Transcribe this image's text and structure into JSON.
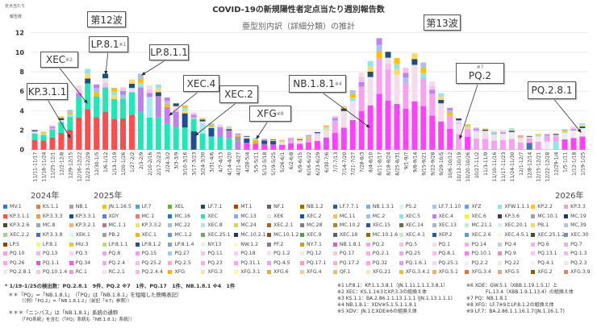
{
  "title": "COVID-19の新規陽性者定点当たり週別報告数",
  "subtitle": "亜型別内訳（詳細分類）の推計",
  "ylabel_line1": "定点当たり",
  "ylabel_line2": "報告数",
  "wave_labels": [
    "第12波",
    "第13波"
  ],
  "annotations": [
    {
      "label": "LP.8.1",
      "note": "※1"
    },
    {
      "label": "XEC",
      "note": "※2"
    },
    {
      "label": "KP.3.1.1",
      "note": ""
    },
    {
      "label": "LP.8.1.1",
      "note": ""
    },
    {
      "label": "XEC.4",
      "note": ""
    },
    {
      "label": "XEC.2",
      "note": ""
    },
    {
      "label": "XFG",
      "note": "※8"
    },
    {
      "label": "NB.1.8.1",
      "note": "※4"
    },
    {
      "label": "PQ.2",
      "note": "※7"
    },
    {
      "label": "PQ.2.8.1",
      "note": ""
    }
  ],
  "years": [
    "2024年",
    "2025年",
    "2026年"
  ],
  "chart_data": {
    "type": "bar",
    "stacked": true,
    "title": "COVID-19の新規陽性者定点当たり週別報告数",
    "subtitle": "亜型別内訳（詳細分類）の推計",
    "ylabel": "定点当たり報告数",
    "ylim": [
      0,
      12
    ],
    "yticks": [
      0,
      2,
      4,
      6,
      8,
      10,
      12
    ],
    "grid": true,
    "legend_placement": "bottom",
    "categories": [
      "11/11-11/17",
      "11/18-11/24",
      "11/25-12/1",
      "12/2-12/8",
      "12/9-12/15",
      "12/16-12/22",
      "12/23-12/29",
      "12/30-1/5",
      "1/6-1/12",
      "1/13-1/19",
      "1/20-1/26",
      "1/27-2/2",
      "2/3-2/9",
      "2/10-2/16",
      "2/17-2/23",
      "2/24-3/2",
      "3/3-3/9",
      "3/10-3/16",
      "3/17-3/23",
      "3/24-3/30",
      "3/31-4/6",
      "4/7-4/13",
      "4/14-4/20",
      "4/21-4/27",
      "4/28-5/4",
      "5/5-5/11",
      "5/12-5/18",
      "5/19-5/25",
      "5/26-6/1",
      "6/2-6/8",
      "6/9-6/15",
      "6/16-6/22",
      "6/23-6/29",
      "6/30-7/6",
      "7/7-7/13",
      "7/14-7/20",
      "7/21-7/27",
      "7/28-8/3",
      "8/4-8/10",
      "8/11-8/17",
      "8/18-8/24",
      "8/25-8/31",
      "9/1-9/7",
      "9/8-9/14",
      "9/15-9/21",
      "9/22-9/28",
      "9/29-10/5",
      "10/6-10/12",
      "10/13-10/19",
      "10/20-10/26",
      "10/27-11/2",
      "11/3-11/9",
      "11/10-11/16",
      "11/17-11/23",
      "11/24-11/30",
      "12/1-12/7",
      "12/8-12/14",
      "12/15-12/21",
      "12/22-12/28",
      "12/29-1/4",
      "1/5-1/11",
      "1/12-1/18",
      "1/19-1/25"
    ],
    "totals": [
      2.0,
      1.85,
      2.5,
      3.45,
      4.1,
      6.6,
      8.3,
      6.7,
      7.8,
      6.35,
      6.4,
      7.2,
      7.8,
      6.6,
      6.7,
      5.35,
      4.75,
      4.55,
      3.8,
      3.3,
      2.7,
      2.6,
      2.4,
      1.65,
      1.4,
      1.2,
      1.15,
      1.1,
      1.0,
      1.3,
      1.2,
      1.5,
      1.8,
      2.5,
      3.45,
      4.5,
      6.1,
      7.9,
      9.1,
      11.45,
      10.05,
      9.4,
      8.4,
      9.9,
      8.95,
      7.0,
      5.8,
      4.3,
      3.2,
      2.6,
      2.3,
      2.2,
      1.85,
      2.0,
      2.2,
      1.45,
      1.4,
      1.6,
      1.65,
      1.7,
      2.1,
      2.4,
      2.7
    ],
    "main_lineages": [
      [
        "KP.3.1.1",
        "XEC"
      ],
      [
        "KP.3.1.1",
        "XEC"
      ],
      [
        "KP.3.1.1",
        "XEC"
      ],
      [
        "KP.3.1.1",
        "XEC"
      ],
      [
        "KP.3.1.1",
        "XEC"
      ],
      [
        "KP.3.1.1",
        "XEC"
      ],
      [
        "KP.3.1.1",
        "XEC"
      ],
      [
        "KP.3.1.1",
        "XEC"
      ],
      [
        "KP.3.1.1",
        "XEC"
      ],
      [
        "KP.3.1.1",
        "XEC"
      ],
      [
        "KP.3.1.1",
        "XEC"
      ],
      [
        "KP.3.1.1",
        "XEC"
      ],
      [
        "XEC",
        "XEC.4"
      ],
      [
        "XEC",
        "XEC.8"
      ],
      [
        "XEC",
        "XEC.4"
      ],
      [
        "XEC",
        "XEC.4"
      ],
      [
        "XEC",
        "XEC.4"
      ],
      [
        "XEC",
        "XEC.2"
      ],
      [
        "XEC.2",
        "XEC"
      ],
      [
        "XEC",
        "XEC.8"
      ],
      [
        "XEC",
        "XEC.2"
      ],
      [
        "XEC",
        "XEC.4"
      ],
      [
        "XEC",
        "XEC.4"
      ],
      [
        "XEC.4",
        "MC.10.1"
      ],
      [
        "NB.1.8.1",
        "XEC.2"
      ],
      [
        "NB.1.8.1",
        "XFG"
      ],
      [
        "NB.1.8.1",
        "XEC.2"
      ],
      [
        "NB.1.8.1",
        "XEC.2"
      ],
      [
        "NB.1.8.1",
        "PQ.1"
      ],
      [
        "NB.1.8.1",
        "PQ.2"
      ],
      [
        "NB.1.8.1",
        "PQ.1"
      ],
      [
        "NB.1.8.1",
        "PQ.2"
      ],
      [
        "NB.1.8.1",
        "PQ.1"
      ],
      [
        "NB.1.8.1",
        "PQ.1"
      ],
      [
        "NB.1.8.1",
        "PQ.2"
      ],
      [
        "NB.1.8.1",
        "PQ.1"
      ],
      [
        "NB.1.8.1",
        "PQ.1.2"
      ],
      [
        "NB.1.8.1",
        "PQ.2"
      ],
      [
        "NB.1.8.1",
        "PQ.1"
      ],
      [
        "NB.1.8.1",
        "PQ.2"
      ],
      [
        "NB.1.8.1",
        "PQ.2"
      ],
      [
        "NB.1.8.1",
        "PQ.1"
      ],
      [
        "NB.1.8.1",
        "PQ.2"
      ],
      [
        "NB.1.8.1",
        "PQ.1"
      ],
      [
        "NB.1.8.1",
        "PQ.2"
      ],
      [
        "NB.1.8.1",
        "PQ.2"
      ],
      [
        "NB.1.8.1",
        "PQ.1"
      ],
      [
        "NB.1.8.1",
        "PQ.2"
      ],
      [
        "PQ.2",
        "PQ.1.2"
      ],
      [
        "NB.1.8.1",
        "PQ.2"
      ],
      [
        "PQ.2",
        "PQ.1.2"
      ],
      [
        "PQ.2",
        "PQ.1"
      ],
      [
        "PQ.2",
        "PQ.1.2"
      ],
      [
        "PQ.2",
        "PQ.2.8.1"
      ],
      [
        "PQ.2",
        "PQ.2.8.1"
      ],
      [
        "PQ.2",
        "PQ.1.2"
      ],
      [
        "MV.1",
        "PQ.2"
      ],
      [
        "PQ.2",
        "PQ.2.8.1"
      ],
      [
        "PQ.2.8.1",
        "PQ.2"
      ],
      [
        "XFW.1.1.1",
        "PQ.2"
      ],
      [
        "NB.1.8.1",
        "PQ.2.8.1"
      ],
      [
        "NB.1.8.1",
        "PQ.2.8.1"
      ],
      [
        "NB.1.8.1",
        "PQ.2.8.1"
      ]
    ]
  },
  "legend": [
    [
      "MV.1",
      "#4472c4"
    ],
    [
      "KS.1.1",
      "#ed7d31"
    ],
    [
      "NB.1",
      "#a5a5a5"
    ],
    [
      "JN.1.16.5",
      "#ffc000"
    ],
    [
      "LF.7",
      "#5b9bd5"
    ],
    [
      "XEL",
      "#70ad47"
    ],
    [
      "LF.7.1",
      "#264478"
    ],
    [
      "MT.1",
      "#9e480e"
    ],
    [
      "NF.1",
      "#636363"
    ],
    [
      "NB.1.2",
      "#997300"
    ],
    [
      "LF.7.7.1",
      "#255e91"
    ],
    [
      "NB.1.3.1",
      "#7fb0e0"
    ],
    [
      "PS.2",
      "#d9f2f2"
    ],
    [
      "LF.7.1.10",
      "#a9c4eb"
    ],
    [
      "XFZ",
      "#6f9fe0"
    ],
    [
      "XFW.1.1.1",
      "#8ee8e8"
    ],
    [
      "KP.2.2",
      "#ffc040"
    ],
    [
      "KP.3.3",
      "#f4a0c8"
    ],
    [
      "KP.3.1.1",
      "#ff4d4d"
    ],
    [
      "KP.3.3.3",
      "#f79646"
    ],
    [
      "KP.3.3.1",
      "#1f4e79"
    ],
    [
      "XDY",
      "#5b7fd0"
    ],
    [
      "MC.1",
      "#e08080"
    ],
    [
      "MC.16",
      "#2e75b6"
    ],
    [
      "XEC",
      "#1de9b6"
    ],
    [
      "MC.13",
      "#8faadc"
    ],
    [
      "XEK",
      "#e8e8e8"
    ],
    [
      "XEC.2",
      "#1f4e99"
    ],
    [
      "MC.11",
      "#f4c84c"
    ],
    [
      "MC.2",
      "#9dc3e6"
    ],
    [
      "XEC.5",
      "#7fe8f0"
    ],
    [
      "XEC.4",
      "#c080f0"
    ],
    [
      "XEC.6",
      "#f0f040"
    ],
    [
      "KP.3.6",
      "#404040"
    ],
    [
      "MC.10.1",
      "#a0a0a0"
    ],
    [
      "MC.19",
      "#1f3864"
    ],
    [
      "KP.3.2.6",
      "#375623"
    ],
    [
      "MC.8",
      "#8fa8dc"
    ],
    [
      "KP.3.2.1",
      "#f8b080"
    ],
    [
      "MC.1.1",
      "#c07080"
    ],
    [
      "KP.3.3.2",
      "#ffd966"
    ],
    [
      "MC.22",
      "#a0c0e8"
    ],
    [
      "XEC.8",
      "#a8e8f0"
    ],
    [
      "MC.24",
      "#e0d060"
    ],
    [
      "XEC.2.1",
      "#c55a11"
    ],
    [
      "MC.28",
      "#808080"
    ],
    [
      "MC.10.2",
      "#b8860b"
    ],
    [
      "XEC.15",
      "#2f5597"
    ],
    [
      "XEC.14",
      "#548235"
    ],
    [
      "XEC.13",
      "#a0b8e0"
    ],
    [
      "MC.21.1",
      "#c0f0d0"
    ],
    [
      "XEC.20.1",
      "#d0f0f8"
    ],
    [
      "PB.1",
      "#ffd070"
    ],
    [
      "MC.39",
      "#a8c8e8"
    ],
    [
      "XEC.2.2",
      "#a9d18e"
    ],
    [
      "KP.3.3.8",
      "#4472c4"
    ],
    [
      "XEK.1",
      "#ddf8f0"
    ],
    [
      "PB.2",
      "#a0a0a0"
    ],
    [
      "XEC.1",
      "#ffb000"
    ],
    [
      "MC.1.2",
      "#5b9bd5"
    ],
    [
      "XEC.25.1",
      "#70ad47"
    ],
    [
      "MC.10.2.1",
      "#203864"
    ],
    [
      "MC.10.1.2",
      "#9e480e"
    ],
    [
      "XEC.9",
      "#5a9a40"
    ],
    [
      "XEC.18",
      "#606060"
    ],
    [
      "MC.10.1.6",
      "#9a6a00"
    ],
    [
      "XEC.4.1",
      "#c0f0c0"
    ],
    [
      "XEP.2",
      "#2060a0"
    ],
    [
      "XEC.2.6",
      "#5b9bd5"
    ],
    [
      "XEC.4.5.1",
      "#fff8d0"
    ],
    [
      "XEC.25.1.2",
      "#385723"
    ],
    [
      "XEC.30",
      "#6a8fd0"
    ],
    [
      "LP.5",
      "#a04000"
    ],
    [
      "LP.8.1",
      "#ffff40"
    ],
    [
      "MU.3",
      "#ffc020"
    ],
    [
      "LP.8.1.1",
      "#d0e040"
    ],
    [
      "LP.8.1.2",
      "#2050a0"
    ],
    [
      "LP.8.1.4",
      "#7fa0e0"
    ],
    [
      "NY.13",
      "#e0f8e8"
    ],
    [
      "NW.1.2",
      "#fff8c0"
    ],
    [
      "PF.2",
      "#808080"
    ],
    [
      "NY.7.1",
      "#d4a017"
    ],
    [
      "NB.1.8.1",
      "#ff40ff"
    ],
    [
      "PQ.2",
      "#f9a0f0"
    ],
    [
      "PQ.5",
      "#fbc0f0"
    ],
    [
      "PQ.1",
      "#f4dcea"
    ],
    [
      "PQ.14",
      "#f0b0f0"
    ],
    [
      "PQ.4",
      "#c8c8f0"
    ],
    [
      "PQ.6",
      "#fbb0e8"
    ],
    [
      "PQ.7",
      "#f8a8f0"
    ],
    [
      "PQ.10",
      "#f8a0d8"
    ],
    [
      "PQ.13",
      "#f8b0e8"
    ],
    [
      "PQ.3",
      "#f4d8f0"
    ],
    [
      "PQ.8",
      "#f7a0f0"
    ],
    [
      "PQ.15",
      "#e8a0f0"
    ],
    [
      "PQ.27",
      "#a8c8e8"
    ],
    [
      "PQ.11",
      "#f8c0f0"
    ],
    [
      "PQ.18",
      "#f8d0f0"
    ],
    [
      "PQ.1.2",
      "#f0e0f0"
    ],
    [
      "PQ.12",
      "#f4e8f0"
    ],
    [
      "PQ.17",
      "#f8c8e8"
    ],
    [
      "PQ.2.1",
      "#f8b0e0"
    ],
    [
      "PQ.25",
      "#f8a0f0"
    ],
    [
      "PQ.8.1",
      "#f8c0f0"
    ],
    [
      "PQ.10.1",
      "#f080f0"
    ],
    [
      "PQ.9",
      "#e090c0"
    ],
    [
      "PQ.13.1",
      "#f8c8f0"
    ],
    [
      "PQ.1.3",
      "#f8b8e8"
    ],
    [
      "PQ.26",
      "#f8a8e0"
    ],
    [
      "PQ.1.1",
      "#f050d0"
    ],
    [
      "PQ.34",
      "#f060d0"
    ],
    [
      "PQ.2.4",
      "#f8a8e8"
    ],
    [
      "PQ.25.2",
      "#f0c0e8"
    ],
    [
      "PQ.2.5",
      "#f4b0c0"
    ],
    [
      "PQ.23",
      "#f8b0d8"
    ],
    [
      "PQ.31.1",
      "#f8a8e8"
    ],
    [
      "PQ.4.5",
      "#f8a0f0"
    ],
    [
      "PQ.17.1",
      "#f4a0b8"
    ],
    [
      "PQ.17.2",
      "#f4b0c8"
    ],
    [
      "PQ.32",
      "#f8a8d8"
    ],
    [
      "PQ.1.6.1",
      "#d8a0f0"
    ],
    [
      "PQ.25.1",
      "#f0d8f0"
    ],
    [
      "PQ.2.2",
      "#f8f0f0"
    ],
    [
      "PQ.22",
      "#f0e8f0"
    ],
    [
      "PQ.4.1",
      "#f8f0f8"
    ],
    [
      "PQ.2.3",
      "#f0e8f0"
    ],
    [
      "PQ.2.8.1",
      "#f4e8f0"
    ],
    [
      "PQ.10.1.4",
      "#f0c8e8"
    ],
    [
      "RC.1",
      "#f0a0c8"
    ],
    [
      "RC.2.1",
      "#f8e0f0"
    ],
    [
      "PQ.2.4.4",
      "#f0c0c8"
    ],
    [
      "XFG",
      "#ffb000"
    ],
    [
      "XFG.3",
      "#f8e8a0"
    ],
    [
      "XFG.3.1",
      "#f8f8a0"
    ],
    [
      "XFG.6",
      "#f0b000"
    ],
    [
      "XFG.4",
      "#e8d0a0"
    ],
    [
      "QF.1",
      "#f0c060"
    ],
    [
      "XFG.21",
      "#f8e8c0"
    ],
    [
      "XFG.3.4.1",
      "#ffc000"
    ],
    [
      "XFG.5.1",
      "#f8b060"
    ],
    [
      "XFG.3.4",
      "#f07030"
    ],
    [
      "XFG.5",
      "#f8a070"
    ],
    [
      "XFG.2",
      "#806000"
    ],
    [
      "XFG.3.9",
      "#f08050"
    ]
  ],
  "notes_left": [
    "* 1/19-1/25の検出数：PQ.2.8.1　9件、PQ.2 ※7　1件、PQ.17　1件、NB.1.8.1 ※4　1件",
    "＊＊「PQ」=「NB.1.8.1」　（「PQ」は「NB.1.8.1」を短縮した簡略表記）",
    "（（例）「PQ.2」=「NB.1.8.1.2」（前記「※7」参照））",
    "＊＊＊「ニンバス」は「NB.1.8.1」系統の通称",
    "（「PQ系統」を含む（「PQ」系統も「NB.1.8.1」系統））"
  ],
  "notes_right_a": [
    "※1 LP.8.1：KP.1.1.3.8.1（JN.1.11.1.1.1.3.8.1）",
    "※2 XEC：KS.1.1※3とKP.3.3の組換え体",
    "※3 KS.1.1：BA.2.86.1.1.13.1.1.1 (JN.1.13.1.1.1)",
    "※4 NB.1.8.1：XDV※5.1.5.1.1.8.1",
    "※5 XDV：JN.1とXDE※6の組換え体"
  ],
  "notes_right_b": [
    "※6 XDE：GW.5.1（XBB.1.19.1.5.1）と",
    "FL.13.4（XBB.1.9.1.13.4）の組換え体",
    "※7 PQ：NB.1.8.1",
    "※8 XFG：LF.7※9とLP.8.1.2の組換え体",
    "※9 LF.7：BA.2.86.1.1.16.1.7(JN.1.16.1.7)"
  ]
}
